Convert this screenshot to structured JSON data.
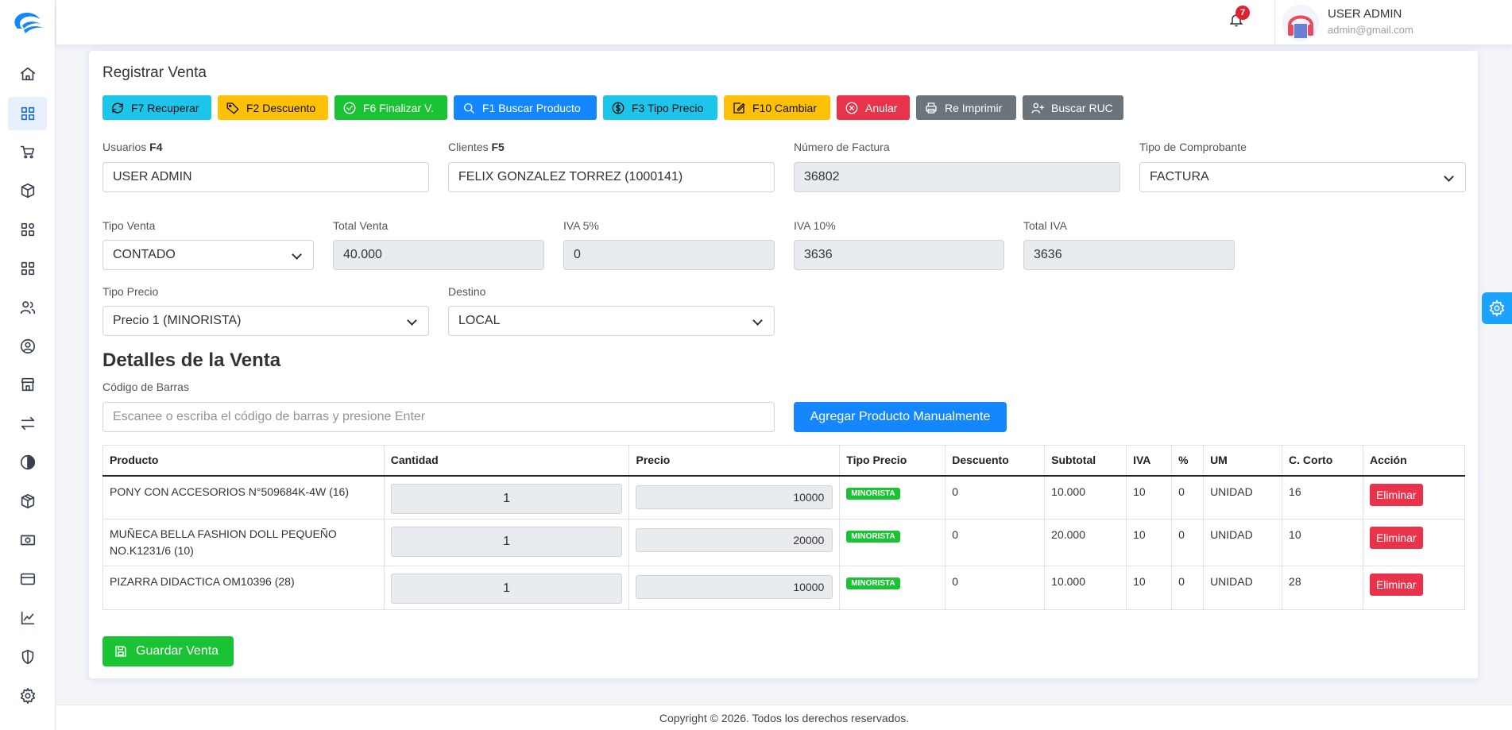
{
  "user": {
    "name": "USER ADMIN",
    "email": "admin@gmail.com"
  },
  "notifications": {
    "count": "7"
  },
  "page": {
    "title": "Registrar Venta"
  },
  "toolbar": [
    {
      "label": "F7 Recuperar",
      "icon": "refresh-icon",
      "color": "cyan"
    },
    {
      "label": "F2 Descuento",
      "icon": "tag-icon",
      "color": "yellow"
    },
    {
      "label": "F6 Finalizar V.",
      "icon": "check-circle-icon",
      "color": "green"
    },
    {
      "label": "F1 Buscar Producto",
      "icon": "search-icon",
      "color": "blue"
    },
    {
      "label": "F3 Tipo Precio",
      "icon": "dollar-icon",
      "color": "cyan"
    },
    {
      "label": "F10 Cambiar",
      "icon": "edit-icon",
      "color": "yellow"
    },
    {
      "label": "Anular",
      "icon": "x-circle-icon",
      "color": "red"
    },
    {
      "label": "Re Imprimir",
      "icon": "printer-icon",
      "color": "gray"
    },
    {
      "label": "Buscar RUC",
      "icon": "user-plus-icon",
      "color": "gray"
    }
  ],
  "form": {
    "usuarios_label": "Usuarios",
    "usuarios_key": "F4",
    "usuarios_value": "USER ADMIN",
    "clientes_label": "Clientes",
    "clientes_key": "F5",
    "clientes_value": "FELIX GONZALEZ TORREZ (1000141)",
    "factura_label": "Número de Factura",
    "factura_value": "36802",
    "comprobante_label": "Tipo de Comprobante",
    "comprobante_value": "FACTURA",
    "tipo_venta_label": "Tipo Venta",
    "tipo_venta_value": "CONTADO",
    "total_venta_label": "Total Venta",
    "total_venta_value": "40.000",
    "iva5_label": "IVA 5%",
    "iva5_value": "0",
    "iva10_label": "IVA 10%",
    "iva10_value": "3636",
    "total_iva_label": "Total IVA",
    "total_iva_value": "3636",
    "tipo_precio_label": "Tipo Precio",
    "tipo_precio_value": "Precio 1 (MINORISTA)",
    "destino_label": "Destino",
    "destino_value": "LOCAL"
  },
  "details": {
    "title": "Detalles de la Venta",
    "barcode_label": "Código de Barras",
    "barcode_placeholder": "Escanee o escriba el código de barras y presione Enter",
    "add_button": "Agregar Producto Manualmente"
  },
  "table": {
    "headers": [
      "Producto",
      "Cantidad",
      "Precio",
      "Tipo Precio",
      "Descuento",
      "Subtotal",
      "IVA",
      "%",
      "UM",
      "C. Corto",
      "Acción"
    ],
    "rows": [
      {
        "producto": "PONY CON ACCESORIOS N°509684K-4W (16)",
        "cantidad": "1",
        "precio": "10000",
        "tipo": "MINORISTA",
        "descuento": "0",
        "subtotal": "10.000",
        "iva": "10",
        "pct": "0",
        "um": "UNIDAD",
        "corto": "16",
        "accion": "Eliminar"
      },
      {
        "producto": "MUÑECA BELLA FASHION DOLL PEQUEÑO NO.K1231/6 (10)",
        "cantidad": "1",
        "precio": "20000",
        "tipo": "MINORISTA",
        "descuento": "0",
        "subtotal": "20.000",
        "iva": "10",
        "pct": "0",
        "um": "UNIDAD",
        "corto": "10",
        "accion": "Eliminar"
      },
      {
        "producto": "PIZARRA DIDACTICA OM10396 (28)",
        "cantidad": "1",
        "precio": "10000",
        "tipo": "MINORISTA",
        "descuento": "0",
        "subtotal": "10.000",
        "iva": "10",
        "pct": "0",
        "um": "UNIDAD",
        "corto": "28",
        "accion": "Eliminar"
      }
    ]
  },
  "save_button": "Guardar Venta",
  "footer": "Copyright © 2026. Todos los derechos reservados.",
  "sidebar_icons": [
    "home-icon",
    "grid-icon",
    "cart-icon",
    "box-icon",
    "apps-icon",
    "apps-icon",
    "users-icon",
    "user-circle-icon",
    "store-icon",
    "transfer-icon",
    "contrast-icon",
    "package-icon",
    "cash-icon",
    "card-icon",
    "chart-icon",
    "shield-icon",
    "gear-icon"
  ]
}
